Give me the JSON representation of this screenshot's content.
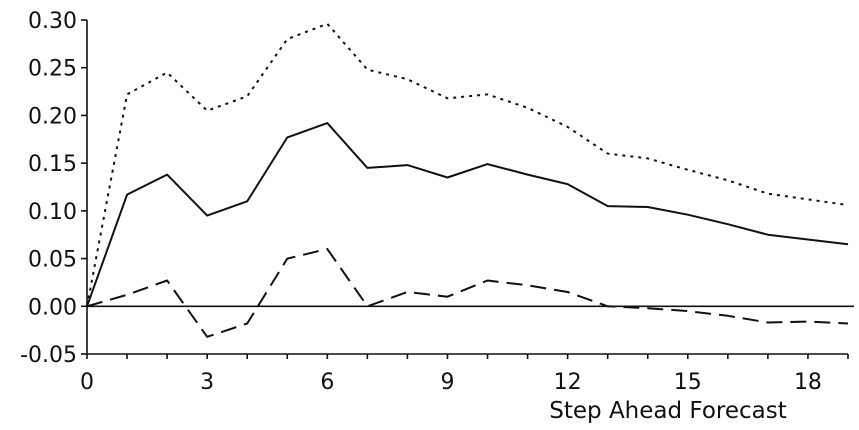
{
  "chart_data": {
    "type": "line",
    "title": "",
    "xlabel": "Step Ahead Forecast",
    "ylabel": "",
    "xlim": [
      0,
      19
    ],
    "ylim": [
      -0.05,
      0.3
    ],
    "x_ticks": [
      "0",
      "3",
      "6",
      "9",
      "12",
      "15",
      "18"
    ],
    "y_ticks": [
      "0.30",
      "0.25",
      "0.20",
      "0.15",
      "0.10",
      "0.05",
      "0.00",
      "-0.05"
    ],
    "grid": false,
    "legend": "none",
    "x": [
      0,
      1,
      2,
      3,
      4,
      5,
      6,
      7,
      8,
      9,
      10,
      11,
      12,
      13,
      14,
      15,
      16,
      17,
      18,
      19
    ],
    "series": [
      {
        "style": "dotted",
        "values": [
          0.0,
          0.222,
          0.245,
          0.205,
          0.22,
          0.28,
          0.296,
          0.248,
          0.238,
          0.218,
          0.222,
          0.208,
          0.188,
          0.16,
          0.155,
          0.143,
          0.132,
          0.118,
          0.112,
          0.106
        ]
      },
      {
        "style": "solid",
        "values": [
          0.0,
          0.117,
          0.138,
          0.095,
          0.11,
          0.177,
          0.192,
          0.145,
          0.148,
          0.135,
          0.149,
          0.138,
          0.128,
          0.105,
          0.104,
          0.096,
          0.086,
          0.075,
          0.07,
          0.065
        ]
      },
      {
        "style": "dashed",
        "values": [
          0.0,
          0.012,
          0.027,
          -0.032,
          -0.018,
          0.05,
          0.06,
          0.0,
          0.015,
          0.01,
          0.027,
          0.022,
          0.015,
          0.0,
          -0.002,
          -0.005,
          -0.01,
          -0.017,
          -0.016,
          -0.018
        ]
      }
    ]
  }
}
